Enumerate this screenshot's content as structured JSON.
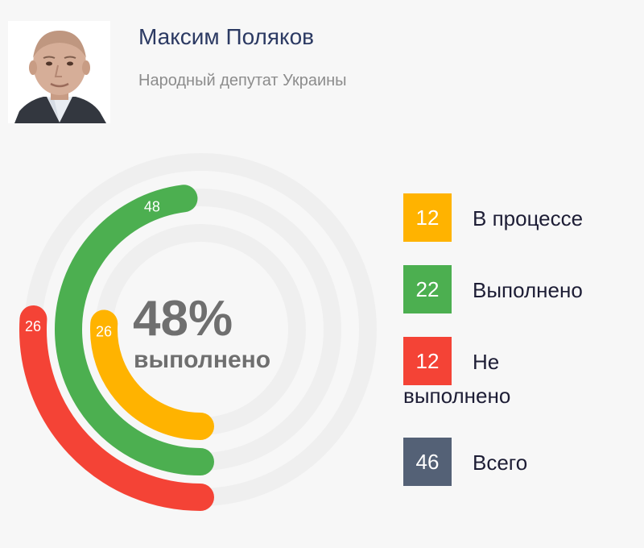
{
  "header": {
    "name": "Максим Поляков",
    "subtitle": "Народный депутат Украины"
  },
  "center": {
    "percent": "48%",
    "label": "выполнено"
  },
  "chart_data": {
    "type": "radial_bar",
    "series": [
      {
        "value": 48,
        "label": "48",
        "color": "#4caf50"
      },
      {
        "value": 26,
        "label": "26",
        "color": "#f44336"
      },
      {
        "value": 26,
        "label": "26",
        "color": "#ffb300"
      }
    ],
    "track_color": "#efefef"
  },
  "legend": {
    "in_progress": {
      "count": "12",
      "label": "В процессе",
      "color": "#ffb300"
    },
    "done": {
      "count": "22",
      "label": "Выполнено",
      "color": "#4caf50"
    },
    "not_done": {
      "count": "12",
      "label_line1": "Не",
      "label_line2": "выполнено",
      "color": "#f44336"
    },
    "total": {
      "count": "46",
      "label": "Всего",
      "color": "#546176"
    }
  }
}
